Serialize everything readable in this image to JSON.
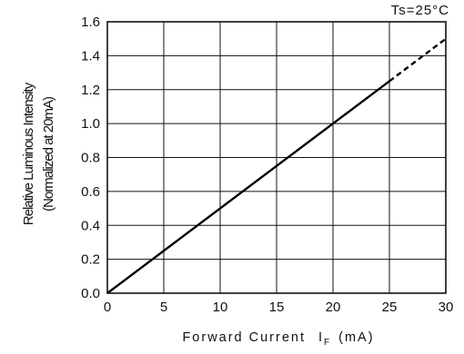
{
  "chart_data": {
    "type": "line",
    "annotation": "Ts=25°C",
    "xlabel_main": "Forward Current",
    "xlabel_symbol": "I",
    "xlabel_subscript": "F",
    "xlabel_unit": "(mA)",
    "ylabel_line1": "Relative Luminous Intensity",
    "ylabel_line2": "(Normalized at 20mA)",
    "xlim": [
      0,
      30
    ],
    "ylim": [
      0.0,
      1.6
    ],
    "x_ticks": [
      "0",
      "5",
      "10",
      "15",
      "20",
      "25",
      "30"
    ],
    "y_ticks": [
      "0.0",
      "0.2",
      "0.4",
      "0.6",
      "0.8",
      "1.0",
      "1.2",
      "1.4",
      "1.6"
    ],
    "grid": true,
    "series": [
      {
        "style": "solid",
        "x": [
          0,
          25
        ],
        "y": [
          0.0,
          1.25
        ]
      },
      {
        "style": "dashed",
        "x": [
          25,
          30
        ],
        "y": [
          1.25,
          1.5
        ]
      }
    ]
  }
}
